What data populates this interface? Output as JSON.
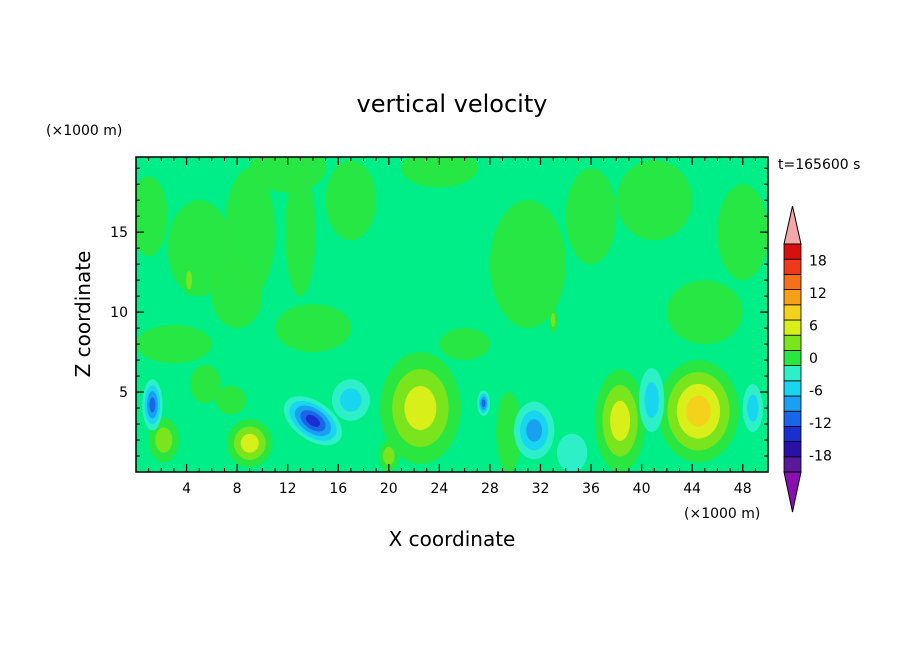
{
  "chart_data": {
    "type": "heatmap",
    "title": "vertical velocity",
    "xlabel": "X coordinate",
    "ylabel": "Z coordinate",
    "x_unit": "(×1000 m)",
    "y_unit": "(×1000 m)",
    "time_label": "t=165600 s",
    "xlim": [
      0,
      50
    ],
    "ylim": [
      0,
      19.7
    ],
    "x_ticks": [
      4,
      8,
      12,
      16,
      20,
      24,
      28,
      32,
      36,
      40,
      44,
      48
    ],
    "y_ticks": [
      5,
      10,
      15
    ],
    "colorbar": {
      "levels": [
        -21,
        -18,
        -15,
        -12,
        -9,
        -6,
        -3,
        0,
        3,
        6,
        9,
        12,
        15,
        18,
        21
      ],
      "labels": [
        -18,
        -12,
        -6,
        0,
        6,
        12,
        18
      ],
      "colors": [
        "#5a189a",
        "#2a0fa8",
        "#1a2fd2",
        "#1a66e8",
        "#1aa0f0",
        "#19d6f0",
        "#2ef0c8",
        "#29e640",
        "#7ae51d",
        "#d8ef1a",
        "#f4d11a",
        "#f6a01a",
        "#f4701a",
        "#ee3a1a",
        "#d80f0f"
      ],
      "under_color": "#8a0fb0",
      "over_color": "#f4a7a8"
    },
    "background_level_color": "#00ee88",
    "features": [
      {
        "kind": "updraft",
        "x": 2.2,
        "z": 2.0,
        "rx": 1.2,
        "rz": 1.4,
        "peak": 4
      },
      {
        "kind": "updraft",
        "x": 5.5,
        "z": 5.5,
        "rx": 1.2,
        "rz": 1.2,
        "peak": 3
      },
      {
        "kind": "updraft",
        "x": 9.0,
        "z": 1.8,
        "rx": 1.8,
        "rz": 1.5,
        "peak": 8
      },
      {
        "kind": "updraft",
        "x": 7.5,
        "z": 4.5,
        "rx": 1.2,
        "rz": 0.9,
        "peak": 3
      },
      {
        "kind": "updraft",
        "x": 22.5,
        "z": 4.0,
        "rx": 3.2,
        "rz": 3.5,
        "peak": 9
      },
      {
        "kind": "updraft",
        "x": 20.0,
        "z": 1.0,
        "rx": 0.8,
        "rz": 1.0,
        "peak": 5
      },
      {
        "kind": "updraft",
        "x": 29.5,
        "z": 2.5,
        "rx": 1.0,
        "rz": 2.5,
        "peak": 2
      },
      {
        "kind": "updraft",
        "x": 38.3,
        "z": 3.2,
        "rx": 2.0,
        "rz": 3.2,
        "peak": 9
      },
      {
        "kind": "updraft",
        "x": 44.5,
        "z": 3.8,
        "rx": 3.2,
        "rz": 3.2,
        "peak": 10
      },
      {
        "kind": "updraft",
        "x": 4.2,
        "z": 12.0,
        "rx": 0.4,
        "rz": 1.0,
        "peak": 4
      },
      {
        "kind": "updraft",
        "x": 33.0,
        "z": 9.5,
        "rx": 0.3,
        "rz": 0.8,
        "peak": 4
      },
      {
        "kind": "downdraft",
        "x": 1.3,
        "z": 4.2,
        "rx": 0.8,
        "rz": 1.6,
        "peak": -12
      },
      {
        "kind": "downdraft",
        "x": 14.0,
        "z": 3.2,
        "rx": 2.6,
        "rz": 1.2,
        "peak": -14
      },
      {
        "kind": "downdraft",
        "x": 17.0,
        "z": 4.5,
        "rx": 1.5,
        "rz": 1.3,
        "peak": -5
      },
      {
        "kind": "downdraft",
        "x": 27.5,
        "z": 4.3,
        "rx": 0.5,
        "rz": 0.8,
        "peak": -10
      },
      {
        "kind": "downdraft",
        "x": 31.5,
        "z": 2.6,
        "rx": 1.6,
        "rz": 1.8,
        "peak": -9
      },
      {
        "kind": "downdraft",
        "x": 40.8,
        "z": 4.5,
        "rx": 1.0,
        "rz": 2.0,
        "peak": -6
      },
      {
        "kind": "downdraft",
        "x": 48.8,
        "z": 4.0,
        "rx": 0.8,
        "rz": 1.5,
        "peak": -4
      },
      {
        "kind": "downdraft",
        "x": 34.5,
        "z": 1.2,
        "rx": 1.2,
        "rz": 1.2,
        "peak": -3
      }
    ]
  }
}
